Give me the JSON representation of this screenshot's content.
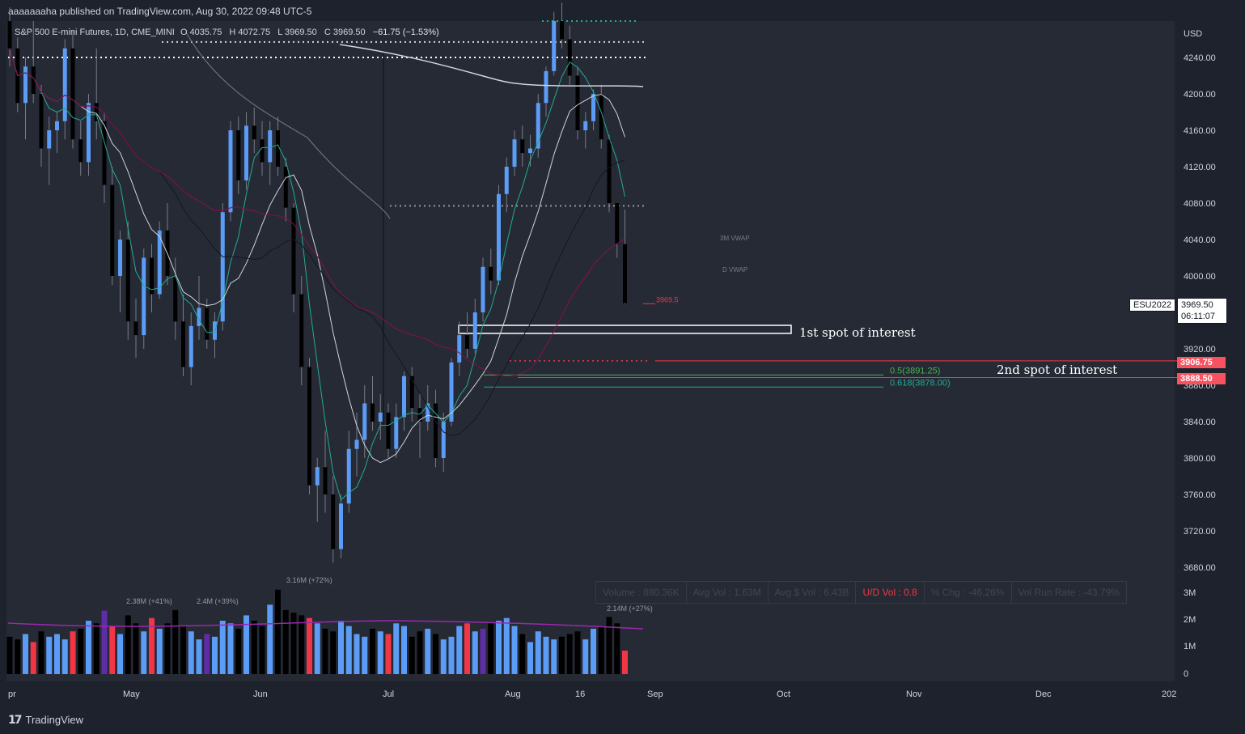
{
  "header": {
    "published_text": "aaaaaaaha published on TradingView.com, Aug 30, 2022 09:48 UTC-5"
  },
  "symbol": {
    "name": "S&P 500 E-mini Futures, 1D, CME_MINI",
    "o_label": "O",
    "o_value": "4035.75",
    "h_label": "H",
    "h_value": "4072.75",
    "l_label": "L",
    "l_value": "3969.50",
    "c_label": "C",
    "c_value": "3969.50",
    "change": "−61.75 (−1.53%)"
  },
  "price_axis": {
    "currency": "USD",
    "ticks": [
      "4240.00",
      "4200.00",
      "4160.00",
      "4120.00",
      "4080.00",
      "4040.00",
      "4000.00",
      "3920.00",
      "3880.00",
      "3840.00",
      "3800.00",
      "3760.00",
      "3720.00",
      "3680.00"
    ]
  },
  "current_price": {
    "ticker": "ESU2022",
    "price": "3969.50",
    "countdown": "06:11:07",
    "last_label": "3969.5"
  },
  "levels": {
    "level1": "3906.75",
    "level2": "3888.50",
    "fib_05": "0.5(3891.25)",
    "fib_0618": "0.618(3878.00)"
  },
  "vwap_labels": {
    "m3": "3M VWAP",
    "d": "D VWAP"
  },
  "annotations": {
    "first": "1st spot of interest",
    "second": "2nd spot of interest"
  },
  "volume_axis": {
    "ticks": [
      "3M",
      "2M",
      "1M",
      "0"
    ]
  },
  "volume_labels": [
    "2.38M (+41%)",
    "2.4M (+39%)",
    "3.16M (+72%)",
    "2.14M (+27%)"
  ],
  "stats": {
    "volume": "Volume : 880.36K",
    "avg_vol": "Avg Vol : 1.63M",
    "avg_dollar_vol": "Avg $ Vol : 6.43B",
    "ud_vol": "U/D Vol : 0.8",
    "pct_chg": "% Chg : -46.26%",
    "run_rate": "Vol Run Rate : -43.79%"
  },
  "time_axis": {
    "labels": [
      "pr",
      "May",
      "Jun",
      "Jul",
      "Aug",
      "16",
      "Sep",
      "Oct",
      "Nov",
      "Dec",
      "202"
    ]
  },
  "footer": {
    "brand": "TradingView"
  },
  "colors": {
    "up": "#5b9cf6",
    "down": "#000000",
    "vol_up": "#5b9cf6",
    "vol_down": "#f23645",
    "vol_special": "#5e2ca5",
    "level": "#f23645",
    "cyan": "#22ab94"
  },
  "chart_data": {
    "type": "candlestick",
    "title": "S&P 500 E-mini Futures, 1D, CME_MINI",
    "ylim": [
      3680,
      4270
    ],
    "y_ticks": [
      4240,
      4200,
      4160,
      4120,
      4080,
      4040,
      4000,
      3920,
      3880,
      3840,
      3800,
      3760,
      3720,
      3680
    ],
    "x_labels": [
      "pr",
      "May",
      "Jun",
      "Jul",
      "Aug",
      "16",
      "Sep",
      "Oct",
      "Nov",
      "Dec",
      "202"
    ],
    "ohlc": [
      [
        4280,
        4295,
        4230,
        4250
      ],
      [
        4250,
        4262,
        4180,
        4190
      ],
      [
        4190,
        4240,
        4150,
        4230
      ],
      [
        4230,
        4280,
        4190,
        4200
      ],
      [
        4200,
        4210,
        4120,
        4140
      ],
      [
        4140,
        4175,
        4100,
        4160
      ],
      [
        4160,
        4180,
        4135,
        4170
      ],
      [
        4170,
        4260,
        4150,
        4250
      ],
      [
        4250,
        4270,
        4140,
        4150
      ],
      [
        4150,
        4170,
        4110,
        4125
      ],
      [
        4125,
        4200,
        4110,
        4190
      ],
      [
        4190,
        4250,
        4150,
        4170
      ],
      [
        4170,
        4180,
        4080,
        4100
      ],
      [
        4100,
        4120,
        3990,
        4000
      ],
      [
        4000,
        4050,
        3960,
        4040
      ],
      [
        4040,
        4060,
        3930,
        3950
      ],
      [
        3950,
        3975,
        3910,
        3935
      ],
      [
        3935,
        4030,
        3920,
        4020
      ],
      [
        4020,
        4035,
        3960,
        3980
      ],
      [
        3980,
        4060,
        3975,
        4050
      ],
      [
        4050,
        4080,
        3990,
        4000
      ],
      [
        4000,
        4020,
        3930,
        3950
      ],
      [
        3950,
        3980,
        3890,
        3900
      ],
      [
        3900,
        3960,
        3880,
        3945
      ],
      [
        3945,
        4000,
        3930,
        3965
      ],
      [
        3965,
        3975,
        3920,
        3930
      ],
      [
        3930,
        3960,
        3910,
        3950
      ],
      [
        3950,
        4080,
        3940,
        4070
      ],
      [
        4070,
        4170,
        4060,
        4160
      ],
      [
        4160,
        4175,
        4090,
        4105
      ],
      [
        4105,
        4180,
        4095,
        4165
      ],
      [
        4165,
        4185,
        4135,
        4150
      ],
      [
        4150,
        4170,
        4110,
        4125
      ],
      [
        4125,
        4170,
        4100,
        4160
      ],
      [
        4160,
        4175,
        4110,
        4120
      ],
      [
        4120,
        4130,
        4060,
        4075
      ],
      [
        4075,
        4080,
        3960,
        3980
      ],
      [
        3980,
        4000,
        3880,
        3900
      ],
      [
        3900,
        3910,
        3760,
        3770
      ],
      [
        3770,
        3800,
        3730,
        3790
      ],
      [
        3790,
        3830,
        3740,
        3760
      ],
      [
        3760,
        3780,
        3685,
        3700
      ],
      [
        3700,
        3760,
        3690,
        3750
      ],
      [
        3750,
        3830,
        3740,
        3810
      ],
      [
        3810,
        3850,
        3780,
        3820
      ],
      [
        3820,
        3880,
        3800,
        3860
      ],
      [
        3860,
        3890,
        3830,
        3840
      ],
      [
        3840,
        3870,
        3820,
        3850
      ],
      [
        3850,
        3860,
        3800,
        3810
      ],
      [
        3810,
        3860,
        3800,
        3845
      ],
      [
        3845,
        3895,
        3830,
        3890
      ],
      [
        3890,
        3900,
        3840,
        3855
      ],
      [
        3855,
        3870,
        3800,
        3840
      ],
      [
        3840,
        3880,
        3830,
        3860
      ],
      [
        3860,
        3875,
        3790,
        3800
      ],
      [
        3800,
        3850,
        3785,
        3840
      ],
      [
        3840,
        3910,
        3835,
        3905
      ],
      [
        3905,
        3950,
        3890,
        3935
      ],
      [
        3935,
        3960,
        3910,
        3920
      ],
      [
        3920,
        3975,
        3915,
        3960
      ],
      [
        3960,
        4020,
        3950,
        4010
      ],
      [
        4010,
        4030,
        3980,
        3995
      ],
      [
        3995,
        4100,
        3990,
        4090
      ],
      [
        4090,
        4130,
        4070,
        4120
      ],
      [
        4120,
        4160,
        4110,
        4150
      ],
      [
        4150,
        4165,
        4120,
        4135
      ],
      [
        4135,
        4155,
        4120,
        4140
      ],
      [
        4140,
        4200,
        4130,
        4190
      ],
      [
        4190,
        4230,
        4175,
        4225
      ],
      [
        4225,
        4290,
        4220,
        4280
      ],
      [
        4280,
        4300,
        4250,
        4260
      ],
      [
        4260,
        4275,
        4210,
        4220
      ],
      [
        4220,
        4230,
        4150,
        4160
      ],
      [
        4160,
        4180,
        4140,
        4170
      ],
      [
        4170,
        4205,
        4160,
        4200
      ],
      [
        4200,
        4210,
        4140,
        4150
      ],
      [
        4150,
        4155,
        4070,
        4080
      ],
      [
        4080,
        4080,
        4020,
        4035
      ],
      [
        4035,
        4073,
        3969,
        3970
      ]
    ],
    "volume_millions": [
      1.4,
      1.3,
      1.5,
      1.2,
      1.6,
      1.4,
      1.5,
      1.3,
      1.6,
      1.7,
      2.0,
      1.9,
      2.38,
      1.8,
      1.5,
      2.2,
      1.9,
      1.6,
      2.1,
      1.7,
      1.9,
      2.4,
      1.8,
      1.6,
      1.3,
      1.5,
      1.4,
      2.0,
      1.9,
      1.7,
      2.2,
      2.0,
      1.8,
      2.6,
      3.16,
      2.4,
      2.3,
      2.2,
      2.1,
      1.9,
      1.7,
      1.6,
      2.0,
      1.8,
      1.5,
      1.4,
      1.7,
      1.6,
      1.5,
      1.9,
      1.8,
      1.4,
      1.6,
      1.7,
      1.5,
      1.3,
      1.4,
      1.8,
      1.9,
      1.6,
      1.7,
      1.9,
      2.0,
      2.1,
      1.8,
      1.5,
      1.2,
      1.6,
      1.4,
      1.3,
      1.4,
      1.5,
      1.6,
      1.3,
      1.7,
      1.8,
      2.14,
      1.9,
      0.88
    ],
    "horizontal_levels": [
      3906.75,
      3888.5,
      3891.25,
      3878.0
    ]
  }
}
